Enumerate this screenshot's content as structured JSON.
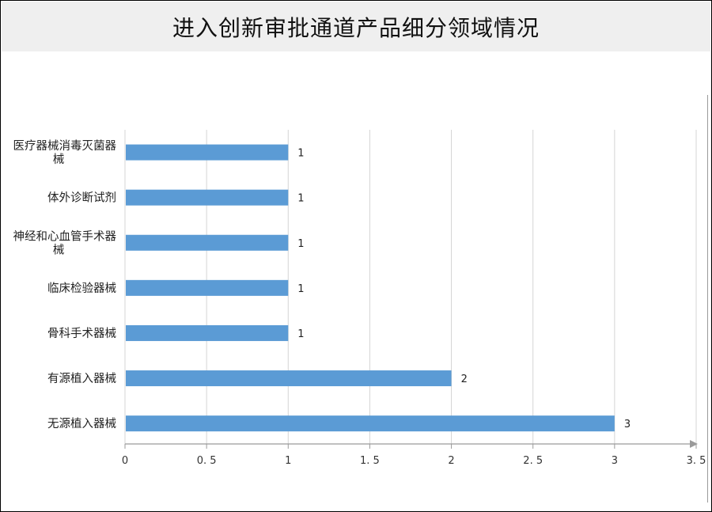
{
  "chart_data": {
    "type": "bar",
    "orientation": "horizontal",
    "title": "进入创新审批通道产品细分领域情况",
    "categories": [
      "医疗器械消毒灭菌器械",
      "体外诊断试剂",
      "神经和心血管手术器械",
      "临床检验器械",
      "骨科手术器械",
      "有源植入器械",
      "无源植入器械"
    ],
    "values": [
      1,
      1,
      1,
      1,
      1,
      2,
      3
    ],
    "xlim": [
      0,
      3.5
    ],
    "xticks": [
      "0",
      "0.5",
      "1",
      "1.5",
      "2",
      "2.5",
      "3",
      "3.5"
    ],
    "grid": true,
    "bar_color": "#5b9bd5",
    "data_labels": true
  }
}
